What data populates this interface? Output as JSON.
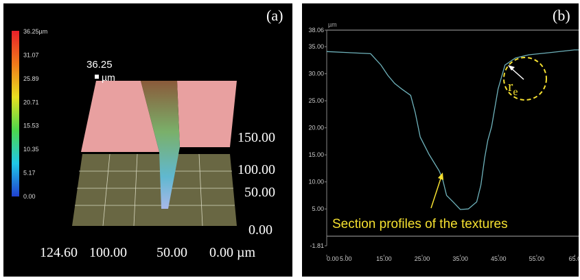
{
  "panel_a": {
    "label": "(a)",
    "colorbar_labels": [
      "36.25µm",
      "31.07",
      "25.89",
      "20.71",
      "15.53",
      "10.35",
      "5.17",
      "0.00"
    ],
    "peak_label": "36.25",
    "peak_unit": "µm",
    "height_labels": [
      "150.00",
      "100.00",
      "50.00",
      "0.00"
    ],
    "width_labels": [
      "124.60",
      "100.00",
      "50.00",
      "0.00 µm"
    ]
  },
  "chart_data": {
    "type": "line",
    "label": "(b)",
    "y_unit": "µm",
    "x": [
      0,
      11.5,
      14.2,
      16,
      17.8,
      19.6,
      22,
      23.2,
      24.5,
      26.8,
      29.5,
      30.4,
      31.4,
      33.1,
      35,
      37.1,
      39.3,
      40.4,
      41.4,
      42.2,
      43.2,
      44.9,
      46.7,
      49.4,
      53,
      58.4,
      64.9,
      66
    ],
    "values": [
      34.1,
      33.7,
      31.6,
      29.7,
      28.2,
      27.2,
      26,
      22.8,
      18.3,
      15.1,
      12,
      10.4,
      7.5,
      6.3,
      4.9,
      5,
      6.3,
      9.4,
      14.5,
      17.7,
      20.2,
      27.2,
      31.6,
      32.9,
      33.5,
      33.9,
      34.4,
      34.4
    ],
    "color": "#6fb3bc",
    "xlim": [
      0,
      66
    ],
    "xticks": [
      {
        "value": 0,
        "label": "0.00"
      },
      {
        "value": 5,
        "label": "5.00"
      },
      {
        "value": 15,
        "label": "15.00"
      },
      {
        "value": 25,
        "label": "25.00"
      },
      {
        "value": 35,
        "label": "35.00"
      },
      {
        "value": 45,
        "label": "45.00"
      },
      {
        "value": 55,
        "label": "55.00"
      },
      {
        "value": 65,
        "label": "65.0"
      }
    ],
    "ylim": [
      -1.81,
      38.06
    ],
    "yticks": [
      38.06,
      {
        "value": 35,
        "label": "35.00"
      },
      {
        "value": 30,
        "label": "30.00"
      },
      {
        "value": 25,
        "label": "25.00"
      },
      {
        "value": 20,
        "label": "20.00"
      },
      {
        "value": 15,
        "label": "15.00"
      },
      {
        "value": 10,
        "label": "10.00"
      },
      {
        "value": 5,
        "label": "5.00"
      },
      -1.81
    ],
    "annotation": "Section profiles of the textures",
    "radius_label": {
      "base": "r",
      "subscript": "e"
    }
  }
}
